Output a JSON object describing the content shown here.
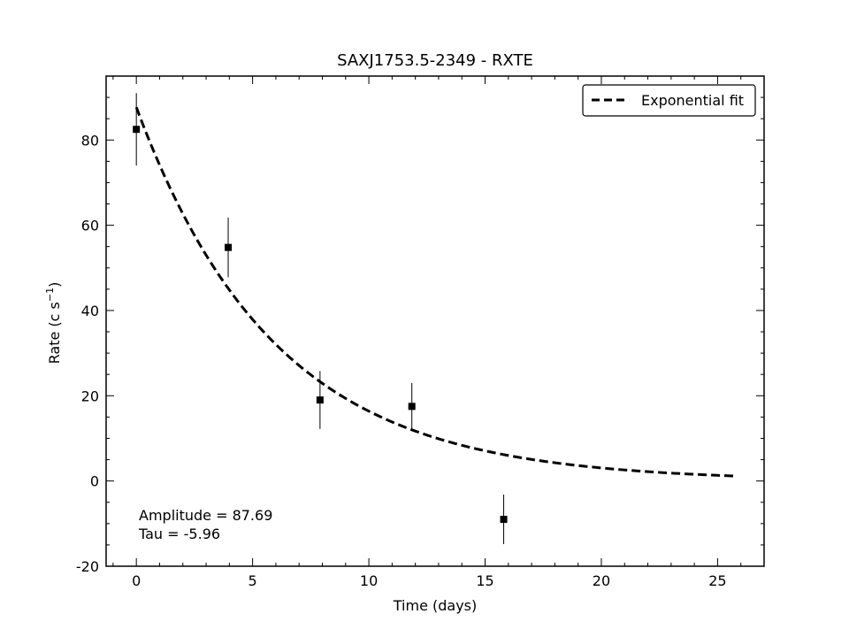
{
  "chart_data": {
    "type": "scatter",
    "title": "SAXJ1753.5-2349 - RXTE",
    "xlabel": "Time (days)",
    "ylabel": "Rate (c s",
    "ylabel_sup": "−1",
    "ylabel_close": ")",
    "xlim": [
      -1.3,
      27.0
    ],
    "ylim": [
      -20,
      95
    ],
    "x_ticks": [
      0,
      5,
      10,
      15,
      20,
      25
    ],
    "x_tick_labels": [
      "0",
      "5",
      "10",
      "15",
      "20",
      "25"
    ],
    "y_ticks": [
      -20,
      0,
      20,
      40,
      60,
      80
    ],
    "y_tick_labels": [
      "-20",
      "0",
      "20",
      "40",
      "60",
      "80"
    ],
    "grid": false,
    "legend_position": "top-right",
    "series": [
      {
        "kind": "errorbar",
        "marker": "square",
        "color": "#000000",
        "points": [
          {
            "x": 0.0,
            "y": 82.5,
            "yerr": 8.5
          },
          {
            "x": 3.95,
            "y": 54.8,
            "yerr": 7.0
          },
          {
            "x": 7.9,
            "y": 19.0,
            "yerr": 6.8
          },
          {
            "x": 11.85,
            "y": 17.5,
            "yerr": 5.5
          },
          {
            "x": 15.8,
            "y": -9.0,
            "yerr": 5.8
          }
        ]
      },
      {
        "name": "Exponential fit",
        "kind": "curve",
        "style": "dashed",
        "color": "#000000",
        "x_start": 0.0,
        "x_end": 25.7
      }
    ],
    "annotations": [
      "Amplitude = 87.69",
      "Tau = -5.96"
    ],
    "fit": {
      "amplitude": 87.69,
      "tau": -5.96
    }
  }
}
